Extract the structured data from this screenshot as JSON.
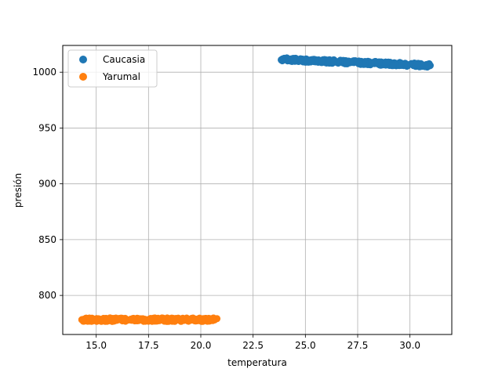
{
  "chart_data": {
    "type": "scatter",
    "title": "",
    "xlabel": "temperatura",
    "ylabel": "presión",
    "xlim": [
      13.4,
      32.0
    ],
    "ylim": [
      765,
      1024
    ],
    "xticks": [
      15.0,
      17.5,
      20.0,
      22.5,
      25.0,
      27.5,
      30.0
    ],
    "xtick_labels": [
      "15.0",
      "17.5",
      "20.0",
      "22.5",
      "25.0",
      "27.5",
      "30.0"
    ],
    "yticks": [
      800,
      850,
      900,
      950,
      1000
    ],
    "ytick_labels": [
      "800",
      "850",
      "900",
      "950",
      "1000"
    ],
    "grid": true,
    "legend_position": "top-left",
    "series": [
      {
        "name": "Caucasia",
        "color": "#1f77b4",
        "x_range": [
          23.8,
          31.0
        ],
        "y_start": 1011.5,
        "y_end": 1006.0,
        "y_spread": 1.6
      },
      {
        "name": "Yarumal",
        "color": "#ff7f0e",
        "x_range": [
          14.3,
          20.8
        ],
        "y_center": 778.3,
        "y_spread": 1.6
      }
    ]
  }
}
